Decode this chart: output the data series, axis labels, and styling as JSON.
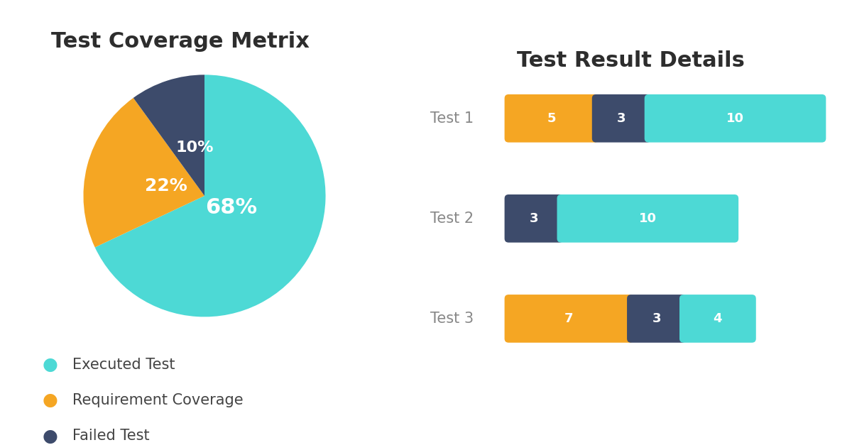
{
  "background_color": "#ffffff",
  "pie_title": "Test Coverage Metrix",
  "pie_values": [
    68,
    22,
    10
  ],
  "pie_colors": [
    "#4dd9d5",
    "#f5a623",
    "#3d4b6b"
  ],
  "pie_labels": [
    "68%",
    "22%",
    "10%"
  ],
  "legend_labels": [
    "Executed Test",
    "Requirement Coverage",
    "Failed Test"
  ],
  "legend_colors": [
    "#4dd9d5",
    "#f5a623",
    "#3d4b6b"
  ],
  "bar_title": "Test Result Details",
  "bar_tests": [
    "Test 1",
    "Test 2",
    "Test 3"
  ],
  "bar_data": [
    [
      5,
      3,
      10
    ],
    [
      0,
      3,
      10
    ],
    [
      7,
      3,
      4
    ]
  ],
  "bar_colors": [
    "#f5a623",
    "#3d4b6b",
    "#4dd9d5"
  ],
  "bar_text_color": "#ffffff",
  "title_fontsize": 22,
  "legend_fontsize": 15,
  "bar_label_fontsize": 13,
  "bar_test_label_fontsize": 15,
  "test_label_color": "#888888",
  "title_color": "#2d2d2d"
}
